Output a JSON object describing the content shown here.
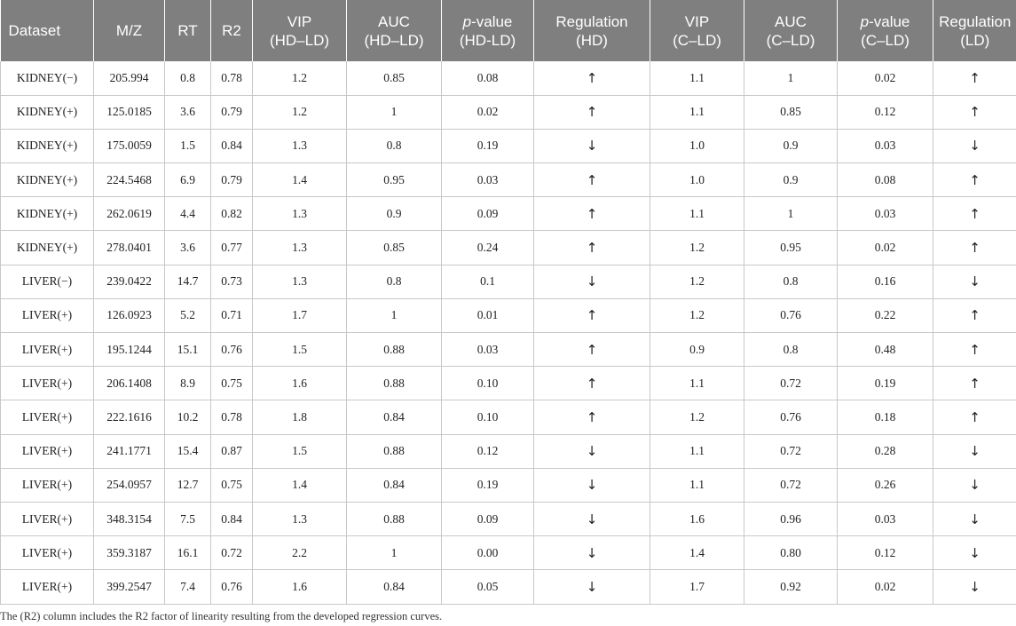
{
  "table": {
    "headers": [
      {
        "lines": [
          "Dataset"
        ]
      },
      {
        "lines": [
          "M/Z"
        ]
      },
      {
        "lines": [
          "RT"
        ]
      },
      {
        "lines": [
          "R2"
        ]
      },
      {
        "lines": [
          "VIP",
          "(HD–LD)"
        ]
      },
      {
        "lines": [
          "AUC",
          "(HD–LD)"
        ]
      },
      {
        "lines": [
          "p-value",
          "(HD-LD)"
        ],
        "italic_prefix": "p",
        "rest": [
          "-value",
          "(HD-LD)"
        ]
      },
      {
        "lines": [
          "Regulation",
          "(HD)"
        ]
      },
      {
        "lines": [
          "VIP",
          "(C–LD)"
        ]
      },
      {
        "lines": [
          "AUC",
          "(C–LD)"
        ]
      },
      {
        "lines": [
          "p-value",
          "(C–LD)"
        ],
        "italic_prefix": "p",
        "rest": [
          "-value",
          "(C–LD)"
        ]
      },
      {
        "lines": [
          "Regulation",
          "(LD)"
        ]
      }
    ],
    "rows": [
      [
        "KIDNEY(−)",
        "205.994",
        "0.8",
        "0.78",
        "1.2",
        "0.85",
        "0.08",
        "↑",
        "1.1",
        "1",
        "0.02",
        "↑"
      ],
      [
        "KIDNEY(+)",
        "125.0185",
        "3.6",
        "0.79",
        "1.2",
        "1",
        "0.02",
        "↑",
        "1.1",
        "0.85",
        "0.12",
        "↑"
      ],
      [
        "KIDNEY(+)",
        "175.0059",
        "1.5",
        "0.84",
        "1.3",
        "0.8",
        "0.19",
        "↓",
        "1.0",
        "0.9",
        "0.03",
        "↓"
      ],
      [
        "KIDNEY(+)",
        "224.5468",
        "6.9",
        "0.79",
        "1.4",
        "0.95",
        "0.03",
        "↑",
        "1.0",
        "0.9",
        "0.08",
        "↑"
      ],
      [
        "KIDNEY(+)",
        "262.0619",
        "4.4",
        "0.82",
        "1.3",
        "0.9",
        "0.09",
        "↑",
        "1.1",
        "1",
        "0.03",
        "↑"
      ],
      [
        "KIDNEY(+)",
        "278.0401",
        "3.6",
        "0.77",
        "1.3",
        "0.85",
        "0.24",
        "↑",
        "1.2",
        "0.95",
        "0.02",
        "↑"
      ],
      [
        "LIVER(−)",
        "239.0422",
        "14.7",
        "0.73",
        "1.3",
        "0.8",
        "0.1",
        "↓",
        "1.2",
        "0.8",
        "0.16",
        "↓"
      ],
      [
        "LIVER(+)",
        "126.0923",
        "5.2",
        "0.71",
        "1.7",
        "1",
        "0.01",
        "↑",
        "1.2",
        "0.76",
        "0.22",
        "↑"
      ],
      [
        "LIVER(+)",
        "195.1244",
        "15.1",
        "0.76",
        "1.5",
        "0.88",
        "0.03",
        "↑",
        "0.9",
        "0.8",
        "0.48",
        "↑"
      ],
      [
        "LIVER(+)",
        "206.1408",
        "8.9",
        "0.75",
        "1.6",
        "0.88",
        "0.10",
        "↑",
        "1.1",
        "0.72",
        "0.19",
        "↑"
      ],
      [
        "LIVER(+)",
        "222.1616",
        "10.2",
        "0.78",
        "1.8",
        "0.84",
        "0.10",
        "↑",
        "1.2",
        "0.76",
        "0.18",
        "↑"
      ],
      [
        "LIVER(+)",
        "241.1771",
        "15.4",
        "0.87",
        "1.5",
        "0.88",
        "0.12",
        "↓",
        "1.1",
        "0.72",
        "0.28",
        "↓"
      ],
      [
        "LIVER(+)",
        "254.0957",
        "12.7",
        "0.75",
        "1.4",
        "0.84",
        "0.19",
        "↓",
        "1.1",
        "0.72",
        "0.26",
        "↓"
      ],
      [
        "LIVER(+)",
        "348.3154",
        "7.5",
        "0.84",
        "1.3",
        "0.88",
        "0.09",
        "↓",
        "1.6",
        "0.96",
        "0.03",
        "↓"
      ],
      [
        "LIVER(+)",
        "359.3187",
        "16.1",
        "0.72",
        "2.2",
        "1",
        "0.00",
        "↓",
        "1.4",
        "0.80",
        "0.12",
        "↓"
      ],
      [
        "LIVER(+)",
        "399.2547",
        "7.4",
        "0.76",
        "1.6",
        "0.84",
        "0.05",
        "↓",
        "1.7",
        "0.92",
        "0.02",
        "↓"
      ]
    ]
  },
  "footnote": "The (R2) column includes the R2 factor of linearity resulting from the developed regression curves."
}
